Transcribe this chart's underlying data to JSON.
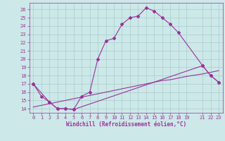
{
  "xlabel": "Windchill (Refroidissement éolien,°C)",
  "background_color": "#cce8e8",
  "grid_color": "#aacccc",
  "line_color": "#993399",
  "xlim": [
    -0.5,
    23.5
  ],
  "ylim": [
    13.5,
    26.8
  ],
  "xticks": [
    0,
    1,
    2,
    3,
    4,
    5,
    6,
    7,
    8,
    9,
    10,
    11,
    12,
    13,
    14,
    15,
    16,
    17,
    18,
    19,
    21,
    22,
    23
  ],
  "yticks": [
    14,
    15,
    16,
    17,
    18,
    19,
    20,
    21,
    22,
    23,
    24,
    25,
    26
  ],
  "line1_x": [
    0,
    1,
    2,
    3,
    4,
    5,
    6,
    7,
    8,
    9,
    10,
    11,
    12,
    13,
    14,
    15,
    16,
    17,
    18,
    21,
    22,
    23
  ],
  "line1_y": [
    17.0,
    15.5,
    14.8,
    14.0,
    14.0,
    13.9,
    15.5,
    16.0,
    20.0,
    22.2,
    22.5,
    24.2,
    25.0,
    25.2,
    26.2,
    25.8,
    25.0,
    24.2,
    23.2,
    19.2,
    18.0,
    17.2
  ],
  "line2_x": [
    0,
    2,
    3,
    4,
    5,
    21,
    22,
    23
  ],
  "line2_y": [
    17.0,
    14.8,
    14.0,
    14.0,
    13.9,
    19.2,
    18.0,
    17.2
  ],
  "line3_x": [
    0,
    1,
    2,
    3,
    4,
    5,
    6,
    7,
    8,
    9,
    10,
    11,
    12,
    13,
    14,
    15,
    16,
    17,
    18,
    19,
    21,
    22,
    23
  ],
  "line3_y": [
    14.2,
    14.4,
    14.6,
    14.8,
    15.0,
    15.2,
    15.4,
    15.6,
    15.8,
    16.0,
    16.2,
    16.4,
    16.6,
    16.8,
    17.0,
    17.2,
    17.4,
    17.5,
    17.7,
    17.9,
    18.2,
    18.4,
    18.6
  ],
  "marker": "D",
  "markersize": 2.0,
  "linewidth": 0.8,
  "tick_fontsize": 5.0,
  "xlabel_fontsize": 5.5
}
